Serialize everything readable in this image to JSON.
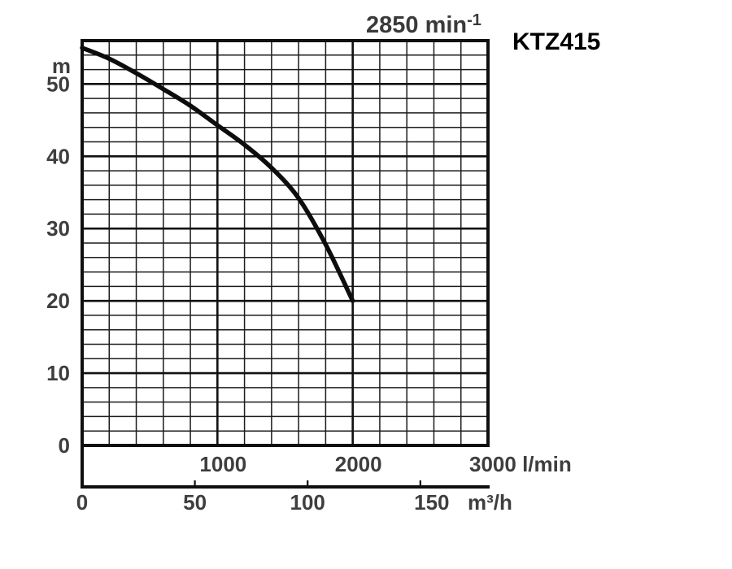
{
  "title": {
    "rpm_text": "2850 min",
    "rpm_sup": "-1",
    "model": "KTZ415"
  },
  "colors": {
    "curve": "#0d0d0d",
    "grid_minor": "#1c1c1c",
    "grid_major": "#111111",
    "border": "#0f0f0f",
    "label": "#3e3e3e"
  },
  "chart_data": {
    "type": "line",
    "title": "2850 min⁻¹",
    "model": "KTZ415",
    "y_unit": "m",
    "x_unit_primary": "l/min",
    "x_unit_secondary": "m³/h",
    "x_axis_lmin": {
      "min": 0,
      "max": 3000,
      "minor_step": 200,
      "major_step": 1000,
      "tick_labels": [
        "1000",
        "2000",
        "3000"
      ]
    },
    "x_axis_m3h": {
      "min": 0,
      "max": 150,
      "tick_step": 50,
      "tick_labels": [
        "0",
        "50",
        "100",
        "150"
      ]
    },
    "y_axis_m": {
      "min": 0,
      "max": 56,
      "minor_step": 2,
      "major_step": 10,
      "tick_labels": [
        "50",
        "40",
        "30",
        "20",
        "10",
        "0"
      ]
    },
    "grid": true,
    "legend": false,
    "series": [
      {
        "name": "head-vs-flow",
        "x_lmin": [
          0,
          200,
          400,
          600,
          800,
          1000,
          1200,
          1400,
          1600,
          1800,
          2000
        ],
        "y_m": [
          55.0,
          53.5,
          51.5,
          49.3,
          47.0,
          44.3,
          41.6,
          38.4,
          34.2,
          27.8,
          20.0
        ]
      }
    ]
  }
}
